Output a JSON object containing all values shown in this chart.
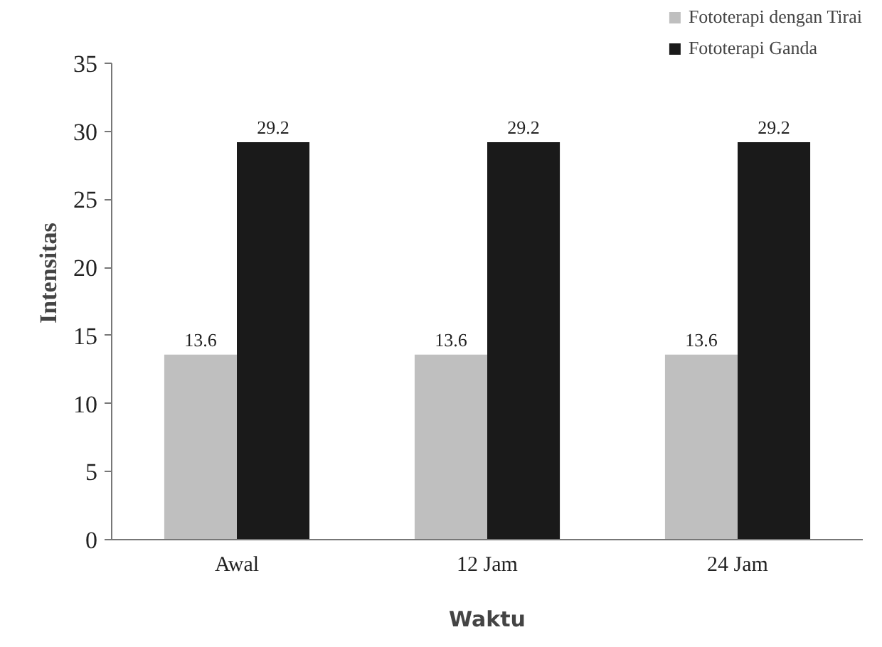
{
  "chart_data": {
    "type": "bar",
    "xlabel": "Waktu",
    "ylabel": "Intensitas",
    "categories": [
      "Awal",
      "12 Jam",
      "24 Jam"
    ],
    "series": [
      {
        "name": "Fototerapi dengan Tirai",
        "color": "#bfbfbf",
        "values": [
          13.6,
          13.6,
          13.6
        ]
      },
      {
        "name": "Fototerapi Ganda",
        "color": "#1a1a1a",
        "values": [
          29.2,
          29.2,
          29.2
        ]
      }
    ],
    "ylim": [
      0,
      35
    ],
    "yticks": [
      0,
      5,
      10,
      15,
      20,
      25,
      30,
      35
    ],
    "data_labels": true,
    "grid": false,
    "legend": "top right"
  }
}
